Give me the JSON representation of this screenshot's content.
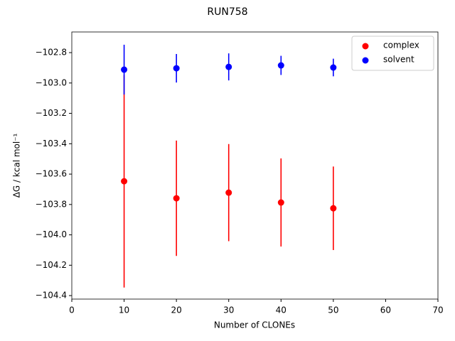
{
  "chart_data": {
    "type": "scatter",
    "title": "RUN758",
    "xlabel": "Number of CLONEs",
    "ylabel": "ΔG / kcal mol⁻¹",
    "x": [
      10,
      20,
      30,
      40,
      50
    ],
    "series": [
      {
        "name": "complex",
        "color": "#ff0000",
        "values": [
          -103.647,
          -103.759,
          -103.722,
          -103.787,
          -103.825
        ],
        "errors": [
          0.7,
          0.38,
          0.32,
          0.29,
          0.275
        ]
      },
      {
        "name": "solvent",
        "color": "#0000ff",
        "values": [
          -102.912,
          -102.903,
          -102.894,
          -102.884,
          -102.898
        ],
        "errors": [
          0.164,
          0.094,
          0.089,
          0.063,
          0.058
        ]
      }
    ],
    "xlim": [
      0,
      70
    ],
    "xticks": [
      0,
      10,
      20,
      30,
      40,
      50,
      60,
      70
    ],
    "ylim": [
      -104.423,
      -102.664
    ],
    "yticks": [
      {
        "value": -104.4,
        "label": "−104.4"
      },
      {
        "value": -104.2,
        "label": "−104.2"
      },
      {
        "value": -104.0,
        "label": "−104.0"
      },
      {
        "value": -103.8,
        "label": "−103.8"
      },
      {
        "value": -103.6,
        "label": "−103.6"
      },
      {
        "value": -103.4,
        "label": "−103.4"
      },
      {
        "value": -103.2,
        "label": "−103.2"
      },
      {
        "value": -103.0,
        "label": "−103.0"
      },
      {
        "value": -102.8,
        "label": "−102.8"
      }
    ],
    "grid": false,
    "legend": "upper right"
  }
}
